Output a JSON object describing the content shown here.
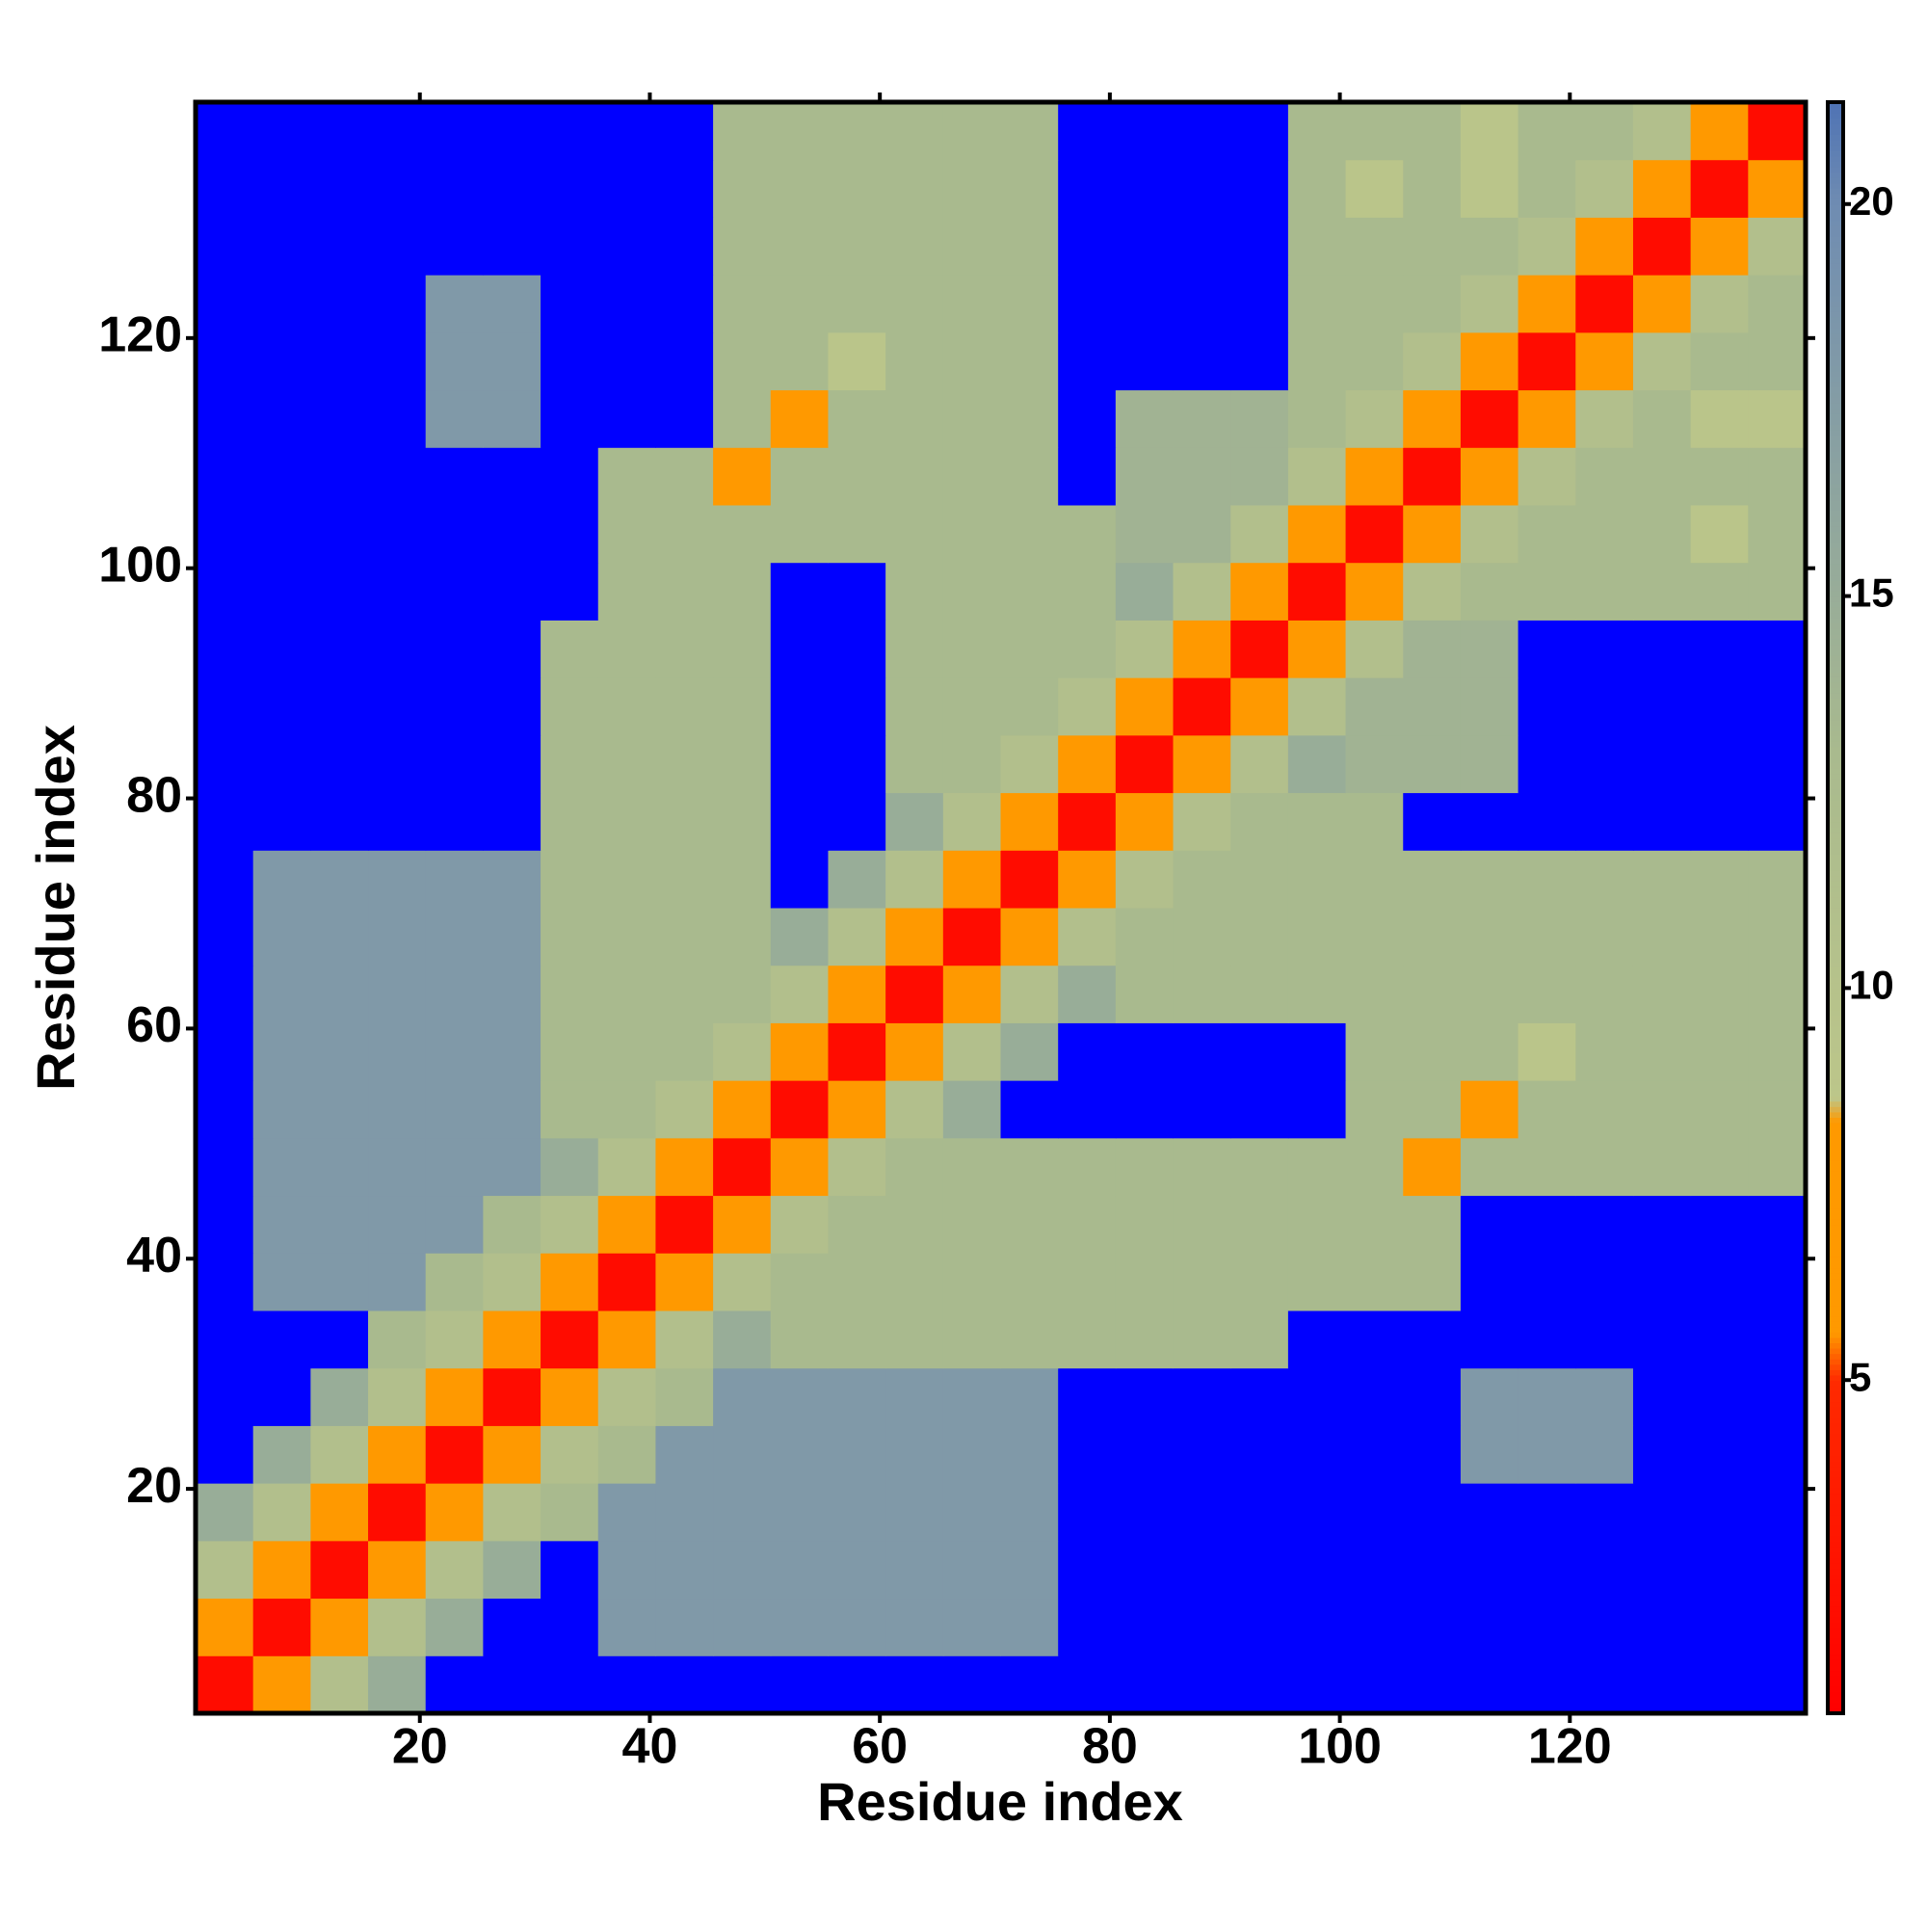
{
  "chart_data": {
    "type": "heatmap",
    "x_label": "Residue index",
    "y_label": "Residue index",
    "xlim": [
      0.5,
      140.5
    ],
    "ylim": [
      0.5,
      140.5
    ],
    "xticks": [
      20,
      40,
      60,
      80,
      100,
      120
    ],
    "yticks": [
      20,
      40,
      60,
      80,
      100,
      120
    ],
    "xbins": [
      0.5,
      5.5,
      10.5,
      15.5,
      20.5,
      25.5,
      30.5,
      35.5,
      40.5,
      45.5,
      50.5,
      55.5,
      60.5,
      65.5,
      70.5,
      75.5,
      80.5,
      85.5,
      90.5,
      95.5,
      100.5,
      105.5,
      110.5,
      115.5,
      120.5,
      125.5,
      130.5,
      135.5,
      140.5
    ],
    "ybins": [
      0.5,
      5.5,
      10.5,
      15.5,
      20.5,
      25.5,
      30.5,
      35.5,
      40.5,
      45.5,
      50.5,
      55.5,
      60.5,
      65.5,
      70.5,
      75.5,
      80.5,
      85.5,
      90.5,
      95.5,
      100.5,
      105.5,
      110.5,
      115.5,
      120.5,
      125.5,
      130.5,
      135.5,
      140.5
    ],
    "colorscale": [
      [
        0.75,
        "#ff0000"
      ],
      [
        5,
        "#ff2a00"
      ],
      [
        5.6,
        "#ff9900"
      ],
      [
        8.3,
        "#ff9900"
      ],
      [
        8.6,
        "#bcc68a"
      ],
      [
        13,
        "#a9ba8e"
      ],
      [
        20,
        "#6f8cb2"
      ],
      [
        21.3,
        "#4f73b4"
      ]
    ],
    "over_color": "#0000ff",
    "colorbar": {
      "lim": [
        0.75,
        21.3
      ],
      "ticks": [
        5,
        10,
        15,
        20
      ]
    },
    "z": [
      [
        2,
        6,
        11,
        15,
        25,
        25,
        25,
        25,
        25,
        25,
        25,
        25,
        25,
        25,
        25,
        25,
        25,
        25,
        25,
        25,
        25,
        25,
        25,
        25,
        25,
        25,
        25,
        25
      ],
      [
        6,
        2,
        6,
        11,
        15,
        25,
        25,
        18,
        18,
        18,
        18,
        18,
        18,
        18,
        18,
        25,
        25,
        25,
        25,
        25,
        25,
        25,
        25,
        25,
        25,
        25,
        25,
        25
      ],
      [
        11,
        6,
        2,
        6,
        11,
        15,
        25,
        18,
        18,
        18,
        18,
        18,
        18,
        18,
        18,
        25,
        25,
        25,
        25,
        25,
        25,
        25,
        25,
        25,
        25,
        25,
        25,
        25
      ],
      [
        15,
        11,
        6,
        2,
        6,
        11,
        13,
        18,
        18,
        18,
        18,
        18,
        18,
        18,
        18,
        25,
        25,
        25,
        25,
        25,
        25,
        25,
        25,
        25,
        25,
        25,
        25,
        25
      ],
      [
        25,
        15,
        11,
        6,
        2,
        6,
        11,
        13,
        18,
        18,
        18,
        18,
        18,
        18,
        18,
        25,
        25,
        25,
        25,
        25,
        25,
        25,
        18,
        18,
        18,
        25,
        25,
        25
      ],
      [
        25,
        25,
        15,
        11,
        6,
        2,
        6,
        11,
        13,
        18,
        18,
        18,
        18,
        18,
        18,
        25,
        25,
        25,
        25,
        25,
        25,
        25,
        18,
        18,
        18,
        25,
        25,
        25
      ],
      [
        25,
        25,
        25,
        13,
        11,
        6,
        2,
        6,
        11,
        15,
        13,
        13,
        13,
        13,
        13,
        13,
        13,
        13,
        13,
        25,
        25,
        25,
        25,
        25,
        25,
        25,
        25,
        25
      ],
      [
        25,
        18,
        18,
        18,
        13,
        11,
        6,
        2,
        6,
        11,
        13,
        13,
        13,
        13,
        13,
        13,
        13,
        13,
        13,
        13,
        13,
        13,
        25,
        25,
        25,
        25,
        25,
        25
      ],
      [
        25,
        18,
        18,
        18,
        18,
        13,
        11,
        6,
        2,
        6,
        11,
        13,
        13,
        13,
        13,
        13,
        13,
        13,
        13,
        13,
        13,
        13,
        25,
        25,
        25,
        25,
        25,
        25
      ],
      [
        25,
        18,
        18,
        18,
        18,
        18,
        15,
        11,
        6,
        2,
        6,
        11,
        13,
        13,
        13,
        13,
        13,
        13,
        13,
        13,
        13,
        8,
        13,
        13,
        13,
        13,
        13,
        13
      ],
      [
        25,
        18,
        18,
        18,
        18,
        18,
        13,
        13,
        11,
        6,
        2,
        6,
        11,
        15,
        25,
        25,
        25,
        25,
        25,
        25,
        13,
        13,
        8,
        13,
        13,
        13,
        13,
        13
      ],
      [
        25,
        18,
        18,
        18,
        18,
        18,
        13,
        13,
        13,
        11,
        6,
        2,
        6,
        11,
        15,
        25,
        25,
        25,
        25,
        25,
        13,
        13,
        13,
        9,
        13,
        13,
        13,
        13
      ],
      [
        25,
        18,
        18,
        18,
        18,
        18,
        13,
        13,
        13,
        13,
        11,
        6,
        2,
        6,
        11,
        15,
        13,
        13,
        13,
        13,
        13,
        13,
        13,
        13,
        13,
        13,
        13,
        13
      ],
      [
        25,
        18,
        18,
        18,
        18,
        18,
        13,
        13,
        13,
        13,
        15,
        11,
        6,
        2,
        6,
        11,
        13,
        13,
        13,
        13,
        13,
        13,
        13,
        13,
        13,
        13,
        13,
        13
      ],
      [
        25,
        18,
        18,
        18,
        18,
        18,
        13,
        13,
        13,
        13,
        25,
        15,
        11,
        6,
        2,
        6,
        11,
        13,
        13,
        13,
        13,
        13,
        13,
        13,
        13,
        13,
        13,
        13
      ],
      [
        25,
        25,
        25,
        25,
        25,
        25,
        13,
        13,
        13,
        13,
        25,
        25,
        15,
        11,
        6,
        2,
        6,
        11,
        13,
        13,
        13,
        25,
        25,
        25,
        25,
        25,
        25,
        25
      ],
      [
        25,
        25,
        25,
        25,
        25,
        25,
        13,
        13,
        13,
        13,
        25,
        25,
        13,
        13,
        11,
        6,
        2,
        6,
        11,
        15,
        14,
        14,
        14,
        25,
        25,
        25,
        25,
        25
      ],
      [
        25,
        25,
        25,
        25,
        25,
        25,
        13,
        13,
        13,
        13,
        25,
        25,
        13,
        13,
        13,
        11,
        6,
        2,
        6,
        11,
        14,
        14,
        14,
        25,
        25,
        25,
        25,
        25
      ],
      [
        25,
        25,
        25,
        25,
        25,
        25,
        13,
        13,
        13,
        13,
        25,
        25,
        13,
        13,
        13,
        13,
        11,
        6,
        2,
        6,
        11,
        14,
        14,
        25,
        25,
        25,
        25,
        25
      ],
      [
        25,
        25,
        25,
        25,
        25,
        25,
        25,
        13,
        13,
        13,
        25,
        25,
        13,
        13,
        13,
        13,
        15,
        11,
        6,
        2,
        6,
        11,
        13,
        13,
        13,
        13,
        13,
        13
      ],
      [
        25,
        25,
        25,
        25,
        25,
        25,
        25,
        13,
        13,
        13,
        13,
        13,
        13,
        13,
        13,
        13,
        14,
        14,
        11,
        6,
        2,
        6,
        11,
        13,
        13,
        13,
        9,
        13
      ],
      [
        25,
        25,
        25,
        25,
        25,
        25,
        25,
        13,
        13,
        8,
        13,
        13,
        13,
        13,
        13,
        25,
        14,
        14,
        14,
        11,
        6,
        2,
        6,
        11,
        13,
        13,
        13,
        13
      ],
      [
        25,
        25,
        25,
        25,
        18,
        18,
        25,
        25,
        25,
        13,
        8,
        13,
        13,
        13,
        13,
        25,
        14,
        14,
        14,
        13,
        11,
        6,
        2,
        6,
        11,
        13,
        9,
        9
      ],
      [
        25,
        25,
        25,
        25,
        18,
        18,
        25,
        25,
        25,
        13,
        13,
        9,
        13,
        13,
        13,
        25,
        25,
        25,
        25,
        13,
        13,
        11,
        6,
        2,
        6,
        11,
        13,
        13
      ],
      [
        25,
        25,
        25,
        25,
        18,
        18,
        25,
        25,
        25,
        13,
        13,
        13,
        13,
        13,
        13,
        25,
        25,
        25,
        25,
        13,
        13,
        13,
        11,
        6,
        2,
        6,
        11,
        13
      ],
      [
        25,
        25,
        25,
        25,
        25,
        25,
        25,
        25,
        25,
        13,
        13,
        13,
        13,
        13,
        13,
        25,
        25,
        25,
        25,
        13,
        13,
        13,
        13,
        11,
        6,
        2,
        6,
        11
      ],
      [
        25,
        25,
        25,
        25,
        25,
        25,
        25,
        25,
        25,
        13,
        13,
        13,
        13,
        13,
        13,
        25,
        25,
        25,
        25,
        13,
        9,
        13,
        9,
        13,
        11,
        6,
        2,
        6
      ],
      [
        25,
        25,
        25,
        25,
        25,
        25,
        25,
        25,
        25,
        13,
        13,
        13,
        13,
        13,
        13,
        25,
        25,
        25,
        25,
        13,
        13,
        13,
        9,
        13,
        13,
        11,
        6,
        2
      ]
    ]
  }
}
